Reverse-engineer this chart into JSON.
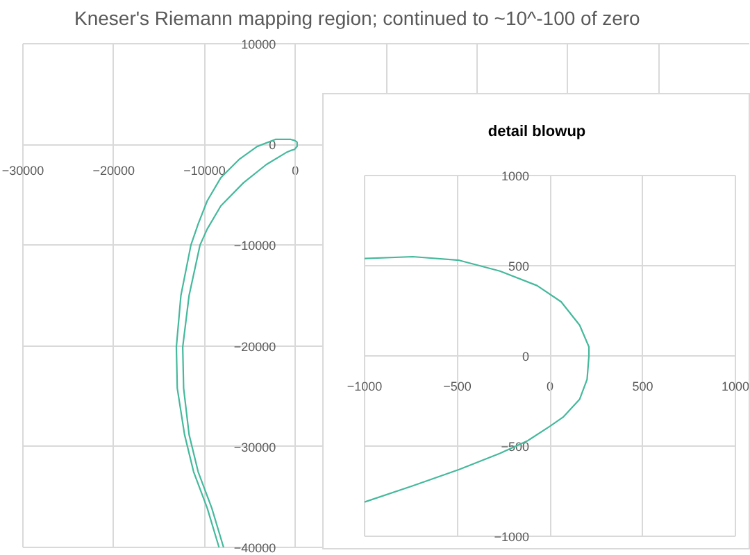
{
  "chart_data": [
    {
      "type": "line",
      "title": "Kneser's Riemann mapping region; continued to ~10^-100 of zero",
      "xlim": [
        -30000,
        50000
      ],
      "ylim": [
        -40000,
        10000
      ],
      "xticks": [
        -30000,
        -20000,
        -10000,
        0,
        {
          "value": 10000,
          "label": null
        },
        {
          "value": 20000,
          "label": null
        },
        {
          "value": 30000,
          "label": null
        },
        {
          "value": 40000,
          "label": null
        },
        {
          "value": 50000,
          "label": null
        }
      ],
      "yticks": [
        -40000,
        -30000,
        -20000,
        -10000,
        0,
        10000
      ],
      "grid": true,
      "series": [
        {
          "color": "#45b99c",
          "x": [
            -8400,
            -9700,
            -11200,
            -12200,
            -13000,
            -13100,
            -12600,
            -11500,
            -10700,
            -9700,
            -8200,
            -6200,
            -4200,
            -2200,
            -1000,
            -500,
            -100,
            100,
            200,
            200,
            200,
            100,
            -100,
            -500,
            -1000,
            -3200,
            -5700,
            -8200,
            -9700,
            -10500,
            -11700,
            -12400,
            -12300,
            -11700,
            -10700,
            -9200,
            -7900
          ],
          "values": [
            -40000,
            -36100,
            -32500,
            -28800,
            -24200,
            -20100,
            -15000,
            -10000,
            -7900,
            -5600,
            -3300,
            -1500,
            -200,
            500,
            500,
            500,
            400,
            300,
            200,
            0,
            -200,
            -300,
            -500,
            -600,
            -800,
            -2000,
            -3800,
            -6100,
            -8400,
            -10000,
            -15000,
            -20100,
            -24200,
            -28800,
            -32500,
            -36100,
            -40000
          ]
        }
      ]
    },
    {
      "type": "line",
      "title": "detail blowup",
      "xlim": [
        -1000,
        1000
      ],
      "ylim": [
        -1000,
        1000
      ],
      "xticks": [
        -1000,
        -500,
        0,
        500,
        1000
      ],
      "yticks": [
        -1000,
        -500,
        0,
        500,
        1000
      ],
      "grid": true,
      "series": [
        {
          "color": "#45b99c",
          "x": [
            -1000,
            -740,
            -490,
            -270,
            -70,
            60,
            160,
            210,
            210,
            200,
            160,
            70,
            0,
            -120,
            -270,
            -490,
            -740,
            -1000
          ],
          "values": [
            540,
            550,
            530,
            470,
            390,
            300,
            170,
            50,
            0,
            -130,
            -240,
            -340,
            -390,
            -470,
            -540,
            -630,
            -720,
            -810
          ]
        }
      ]
    }
  ]
}
